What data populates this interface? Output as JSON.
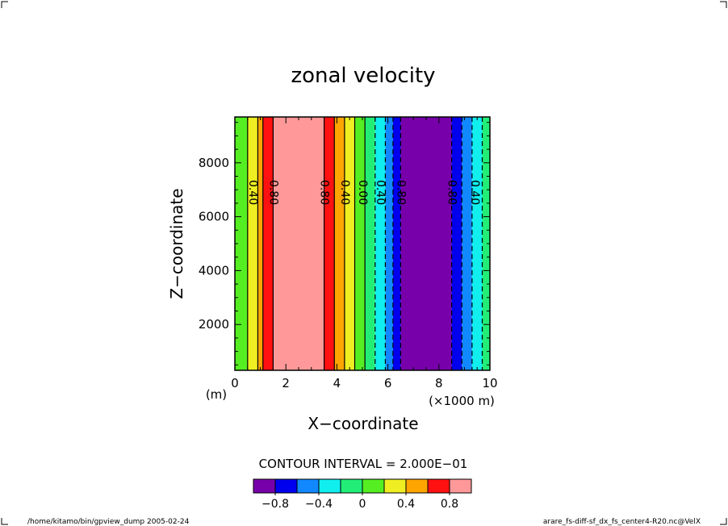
{
  "chart_data": {
    "type": "heatmap",
    "title": "zonal velocity",
    "xlabel": "X−coordinate",
    "ylabel": "Z−coordinate",
    "x_unit_left": "(m)",
    "x_unit_right": "(×1000 m)",
    "xlim": [
      0,
      10
    ],
    "ylim": [
      300,
      9700
    ],
    "x_ticks": [
      "0",
      "2",
      "4",
      "6",
      "8",
      "10"
    ],
    "y_ticks": [
      "2000",
      "4000",
      "6000",
      "8000"
    ],
    "x_tick_values": [
      0,
      2,
      4,
      6,
      8,
      10
    ],
    "y_tick_values": [
      2000,
      4000,
      6000,
      8000
    ],
    "bands": [
      {
        "x0": 0.0,
        "x1": 0.5,
        "color": "#55ee22"
      },
      {
        "x0": 0.5,
        "x1": 0.9,
        "color": "#eeee22"
      },
      {
        "x0": 0.9,
        "x1": 1.1,
        "color": "#ffa500"
      },
      {
        "x0": 1.1,
        "x1": 1.5,
        "color": "#ff1111"
      },
      {
        "x0": 1.5,
        "x1": 3.5,
        "color": "#ff9999"
      },
      {
        "x0": 3.5,
        "x1": 3.9,
        "color": "#ff1111"
      },
      {
        "x0": 3.9,
        "x1": 4.3,
        "color": "#ffa500"
      },
      {
        "x0": 4.3,
        "x1": 4.7,
        "color": "#eeee22"
      },
      {
        "x0": 4.7,
        "x1": 5.1,
        "color": "#55ee22"
      },
      {
        "x0": 5.1,
        "x1": 5.5,
        "color": "#22ee77"
      },
      {
        "x0": 5.5,
        "x1": 5.9,
        "color": "#11eeee"
      },
      {
        "x0": 5.9,
        "x1": 6.2,
        "color": "#1188ff"
      },
      {
        "x0": 6.2,
        "x1": 6.5,
        "color": "#0000ee"
      },
      {
        "x0": 6.5,
        "x1": 8.5,
        "color": "#7700aa"
      },
      {
        "x0": 8.5,
        "x1": 8.9,
        "color": "#0000ee"
      },
      {
        "x0": 8.9,
        "x1": 9.3,
        "color": "#1188ff"
      },
      {
        "x0": 9.3,
        "x1": 9.7,
        "color": "#11eeee"
      },
      {
        "x0": 9.7,
        "x1": 10.0,
        "color": "#22ee77"
      }
    ],
    "contours": [
      {
        "x": 0.5,
        "dashed": false
      },
      {
        "x": 0.9,
        "dashed": false
      },
      {
        "x": 1.1,
        "dashed": false
      },
      {
        "x": 1.5,
        "dashed": false
      },
      {
        "x": 3.5,
        "dashed": false
      },
      {
        "x": 3.9,
        "dashed": false
      },
      {
        "x": 4.3,
        "dashed": false
      },
      {
        "x": 4.7,
        "dashed": false
      },
      {
        "x": 5.1,
        "dashed": false
      },
      {
        "x": 5.5,
        "dashed": true
      },
      {
        "x": 5.9,
        "dashed": true
      },
      {
        "x": 6.2,
        "dashed": true
      },
      {
        "x": 6.5,
        "dashed": true
      },
      {
        "x": 8.5,
        "dashed": true
      },
      {
        "x": 8.9,
        "dashed": true
      },
      {
        "x": 9.3,
        "dashed": true
      },
      {
        "x": 9.7,
        "dashed": true
      }
    ],
    "contour_labels": [
      {
        "x": 0.7,
        "y": 6900,
        "text": "0.40"
      },
      {
        "x": 1.5,
        "y": 6900,
        "text": "0.80"
      },
      {
        "x": 3.5,
        "y": 6900,
        "text": "0.80"
      },
      {
        "x": 4.3,
        "y": 6900,
        "text": "0.40"
      },
      {
        "x": 5.0,
        "y": 6900,
        "text": "0.00"
      },
      {
        "x": 5.7,
        "y": 6900,
        "text": "0.40"
      },
      {
        "x": 6.5,
        "y": 6900,
        "text": "0.80"
      },
      {
        "x": 8.5,
        "y": 6900,
        "text": "0.80"
      },
      {
        "x": 9.4,
        "y": 6900,
        "text": "0.40"
      }
    ],
    "contour_interval_text": "CONTOUR INTERVAL = 2.000E−01",
    "colorbar": {
      "colors": [
        "#7700aa",
        "#0000ee",
        "#1188ff",
        "#11eeee",
        "#22ee77",
        "#55ee22",
        "#eeee22",
        "#ffa500",
        "#ff1111",
        "#ff9999"
      ],
      "tick_labels": [
        "−0.8",
        "−0.4",
        "0",
        "0.4",
        "0.8"
      ]
    }
  },
  "footer": {
    "left": "/home/kitamo/bin/gpview_dump  2005-02-24",
    "right": "arare_fs-diff-sf_dx_fs_center4-R20.nc@VelX"
  }
}
